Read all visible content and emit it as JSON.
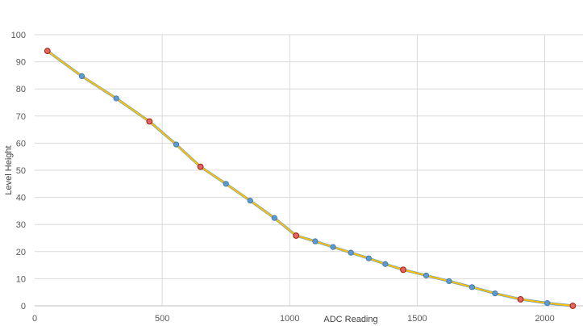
{
  "chart_data": {
    "type": "scatter",
    "title": "",
    "xlabel": "ADC Reading",
    "ylabel": "Level Height",
    "xlim": [
      0,
      2150
    ],
    "ylim": [
      0,
      100
    ],
    "x_ticks": [
      0,
      500,
      1000,
      1500,
      2000
    ],
    "y_ticks": [
      0,
      10,
      20,
      30,
      40,
      50,
      60,
      70,
      80,
      90,
      100
    ],
    "x_tick_labels": [
      "0",
      "500",
      "1000",
      "1500",
      "2000"
    ],
    "y_tick_labels": [
      "0",
      "10",
      "20",
      "30",
      "40",
      "50",
      "60",
      "70",
      "80",
      "90",
      "100"
    ],
    "grid": true,
    "legend": "none",
    "colors": {
      "series_line_outer": "#5b9bd5",
      "series_line_inner": "#ffc000",
      "primary_marker_fill": "#5b9bd5",
      "primary_marker_edge": "#41719c",
      "highlight_marker_fill": "#e06666",
      "highlight_marker_edge": "#a61c00",
      "gridline": "#d9d9d9",
      "axis_line": "#bfbfbf",
      "tick_label": "#595959",
      "axis_title": "#404040"
    },
    "series": [
      {
        "role": "primary",
        "points": [
          {
            "x": 50,
            "y": 94
          },
          {
            "x": 185,
            "y": 84.7
          },
          {
            "x": 320,
            "y": 76.5
          },
          {
            "x": 450,
            "y": 68
          },
          {
            "x": 555,
            "y": 59.5
          },
          {
            "x": 650,
            "y": 51.3
          },
          {
            "x": 750,
            "y": 45
          },
          {
            "x": 845,
            "y": 38.8
          },
          {
            "x": 940,
            "y": 32.4
          },
          {
            "x": 1025,
            "y": 25.9
          },
          {
            "x": 1100,
            "y": 23.8
          },
          {
            "x": 1170,
            "y": 21.7
          },
          {
            "x": 1240,
            "y": 19.6
          },
          {
            "x": 1310,
            "y": 17.5
          },
          {
            "x": 1375,
            "y": 15.4
          },
          {
            "x": 1445,
            "y": 13.3
          },
          {
            "x": 1535,
            "y": 11.2
          },
          {
            "x": 1625,
            "y": 9.1
          },
          {
            "x": 1715,
            "y": 6.9
          },
          {
            "x": 1805,
            "y": 4.6
          },
          {
            "x": 1905,
            "y": 2.4
          },
          {
            "x": 2010,
            "y": 1
          },
          {
            "x": 2110,
            "y": 0
          }
        ]
      },
      {
        "role": "highlighted",
        "points": [
          {
            "x": 50,
            "y": 94
          },
          {
            "x": 450,
            "y": 68
          },
          {
            "x": 650,
            "y": 51.3
          },
          {
            "x": 1025,
            "y": 25.9
          },
          {
            "x": 1445,
            "y": 13.3
          },
          {
            "x": 1905,
            "y": 2.4
          },
          {
            "x": 2110,
            "y": 0
          }
        ]
      }
    ]
  }
}
